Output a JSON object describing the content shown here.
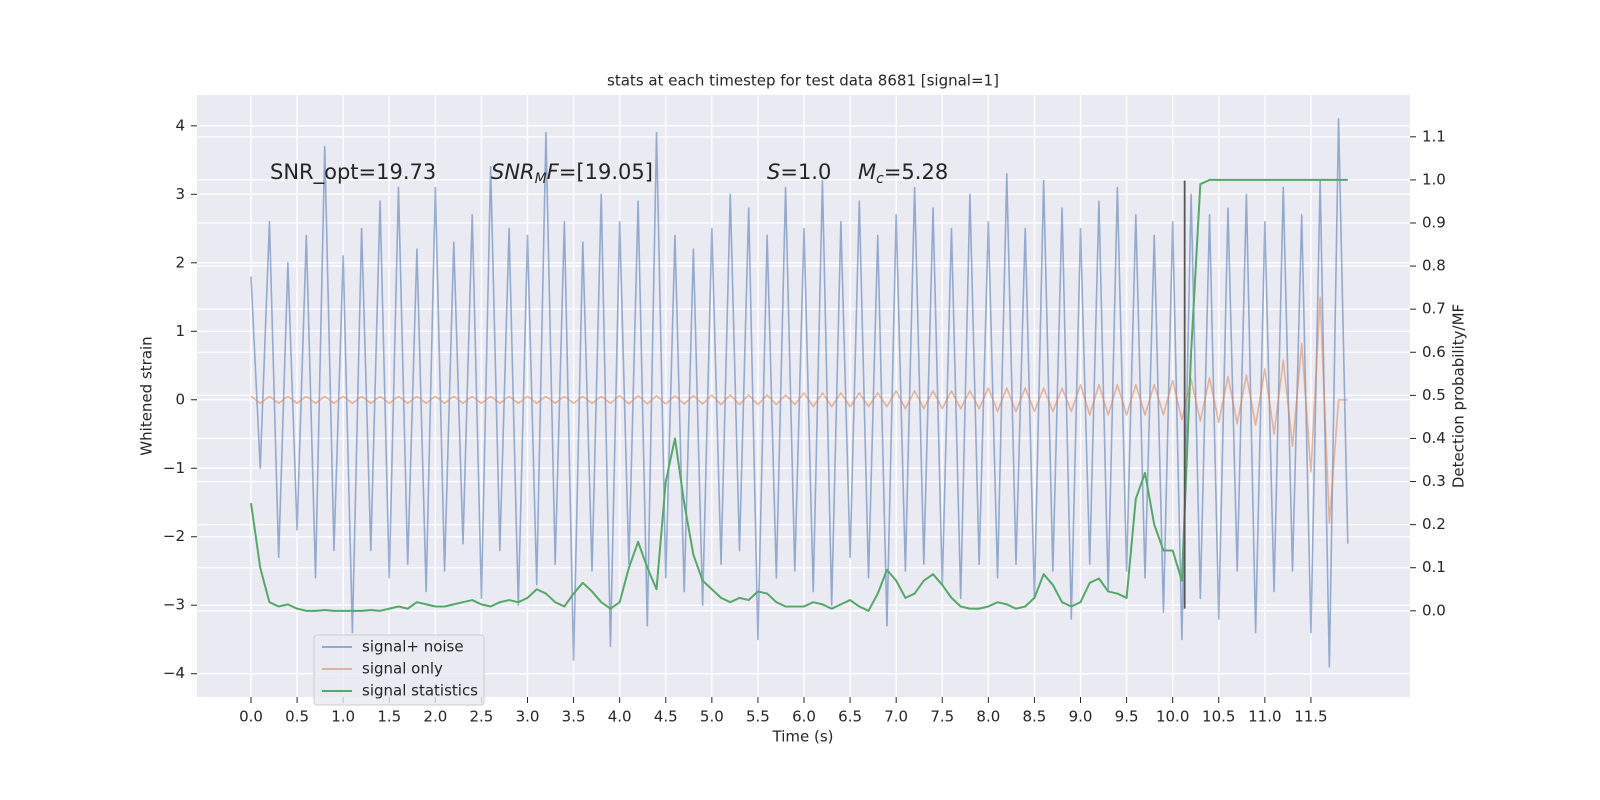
{
  "chart_data": {
    "type": "line",
    "title": "stats at each timestep for test data 8681 [signal=1]",
    "xlabel": "Time (s)",
    "ylabel": "Whitened strain",
    "y2label": "Detection probability/MF",
    "x": [
      0,
      0.1,
      0.2,
      0.3,
      0.4,
      0.5,
      0.6,
      0.7,
      0.8,
      0.9,
      1,
      1.1,
      1.2,
      1.3,
      1.4,
      1.5,
      1.6,
      1.7,
      1.8,
      1.9,
      2,
      2.1,
      2.2,
      2.3,
      2.4,
      2.5,
      2.6,
      2.7,
      2.8,
      2.9,
      3,
      3.1,
      3.2,
      3.3,
      3.4,
      3.5,
      3.6,
      3.7,
      3.8,
      3.9,
      4,
      4.1,
      4.2,
      4.3,
      4.4,
      4.5,
      4.6,
      4.7,
      4.8,
      4.9,
      5,
      5.1,
      5.2,
      5.3,
      5.4,
      5.5,
      5.6,
      5.7,
      5.8,
      5.9,
      6,
      6.1,
      6.2,
      6.3,
      6.4,
      6.5,
      6.6,
      6.7,
      6.8,
      6.9,
      7,
      7.1,
      7.2,
      7.3,
      7.4,
      7.5,
      7.6,
      7.7,
      7.8,
      7.9,
      8,
      8.1,
      8.2,
      8.3,
      8.4,
      8.5,
      8.6,
      8.7,
      8.8,
      8.9,
      9,
      9.1,
      9.2,
      9.3,
      9.4,
      9.5,
      9.6,
      9.7,
      9.8,
      9.9,
      10,
      10.1,
      10.2,
      10.3,
      10.4,
      10.5,
      10.6,
      10.7,
      10.8,
      10.9,
      11,
      11.1,
      11.2,
      11.3,
      11.4,
      11.5,
      11.6,
      11.7,
      11.8,
      11.9
    ],
    "series": [
      {
        "name": "signal+ noise",
        "color": "#4c72b0",
        "opacity": 0.55,
        "values": [
          1.8,
          -1.0,
          2.6,
          -2.3,
          2.0,
          -1.9,
          2.4,
          -2.6,
          3.7,
          -2.2,
          2.1,
          -3.4,
          2.5,
          -2.2,
          2.9,
          -2.6,
          3.1,
          -2.4,
          2.2,
          -2.8,
          3.1,
          -2.5,
          2.3,
          -2.1,
          2.7,
          -2.9,
          3.4,
          -2.2,
          2.5,
          -3.0,
          2.4,
          -2.7,
          3.9,
          -2.4,
          2.6,
          -3.8,
          2.3,
          -2.5,
          3.0,
          -3.6,
          2.6,
          -2.4,
          2.9,
          -3.3,
          3.9,
          -2.6,
          2.4,
          -2.8,
          2.2,
          -3.0,
          2.5,
          -2.4,
          3.0,
          -2.2,
          2.8,
          -3.5,
          2.4,
          -2.6,
          3.1,
          -2.5,
          2.5,
          -2.8,
          3.2,
          -3.0,
          2.6,
          -2.3,
          2.9,
          -2.6,
          2.4,
          -3.3,
          2.7,
          -2.5,
          3.1,
          -2.4,
          2.8,
          -2.7,
          2.5,
          -2.9,
          3.0,
          -2.4,
          2.6,
          -2.6,
          3.3,
          -2.4,
          2.5,
          -2.9,
          3.2,
          -2.5,
          2.8,
          -3.2,
          2.5,
          -2.4,
          2.9,
          -2.8,
          3.1,
          -2.5,
          2.7,
          -2.6,
          2.4,
          -3.1,
          2.6,
          -3.5,
          3.0,
          -2.9,
          2.7,
          -3.2,
          2.8,
          -2.5,
          3.0,
          -3.4,
          2.6,
          -2.8,
          3.1,
          -2.5,
          2.7,
          -3.4,
          3.2,
          -3.9,
          4.1,
          -2.1
        ]
      },
      {
        "name": "signal only",
        "color": "#dd8452",
        "opacity": 0.55,
        "values": [
          0.05,
          -0.05,
          0.05,
          -0.05,
          0.05,
          -0.05,
          0.05,
          -0.05,
          0.05,
          -0.05,
          0.05,
          -0.05,
          0.05,
          -0.05,
          0.05,
          -0.05,
          0.05,
          -0.05,
          0.05,
          -0.05,
          0.05,
          -0.05,
          0.05,
          -0.05,
          0.05,
          -0.05,
          0.05,
          -0.05,
          0.05,
          -0.05,
          0.05,
          -0.05,
          0.05,
          -0.05,
          0.05,
          -0.05,
          0.05,
          -0.05,
          0.05,
          -0.05,
          0.06,
          -0.06,
          0.06,
          -0.06,
          0.06,
          -0.06,
          0.06,
          -0.06,
          0.06,
          -0.06,
          0.07,
          -0.07,
          0.07,
          -0.07,
          0.07,
          -0.07,
          0.07,
          -0.07,
          0.07,
          -0.07,
          0.1,
          -0.1,
          0.1,
          -0.1,
          0.1,
          -0.1,
          0.1,
          -0.1,
          0.1,
          -0.1,
          0.13,
          -0.13,
          0.13,
          -0.13,
          0.13,
          -0.13,
          0.13,
          -0.13,
          0.13,
          -0.13,
          0.17,
          -0.17,
          0.17,
          -0.17,
          0.17,
          -0.17,
          0.17,
          -0.17,
          0.17,
          -0.17,
          0.22,
          -0.22,
          0.22,
          -0.22,
          0.22,
          -0.22,
          0.22,
          -0.22,
          0.22,
          -0.22,
          0.28,
          -0.29,
          0.3,
          -0.31,
          0.32,
          -0.33,
          0.34,
          -0.35,
          0.36,
          -0.37,
          0.45,
          -0.5,
          0.58,
          -0.68,
          0.82,
          -1.05,
          1.5,
          -1.8,
          0,
          0
        ]
      },
      {
        "name": "signal statistics",
        "color": "#55a868",
        "opacity": 1,
        "axis": "y2",
        "values": [
          0.25,
          0.1,
          0.02,
          0.01,
          0.015,
          0.005,
          0.0,
          0.0,
          0.002,
          0.0,
          0.0,
          0.0,
          0.0,
          0.002,
          0.0,
          0.005,
          0.01,
          0.005,
          0.02,
          0.015,
          0.01,
          0.01,
          0.015,
          0.02,
          0.025,
          0.015,
          0.01,
          0.02,
          0.025,
          0.02,
          0.03,
          0.05,
          0.04,
          0.02,
          0.01,
          0.04,
          0.065,
          0.045,
          0.02,
          0.005,
          0.02,
          0.1,
          0.16,
          0.1,
          0.05,
          0.3,
          0.4,
          0.25,
          0.13,
          0.07,
          0.05,
          0.03,
          0.02,
          0.03,
          0.025,
          0.045,
          0.04,
          0.02,
          0.01,
          0.01,
          0.01,
          0.02,
          0.015,
          0.005,
          0.015,
          0.025,
          0.01,
          0.0,
          0.04,
          0.095,
          0.07,
          0.03,
          0.04,
          0.07,
          0.085,
          0.06,
          0.03,
          0.01,
          0.005,
          0.005,
          0.01,
          0.02,
          0.015,
          0.005,
          0.01,
          0.03,
          0.085,
          0.06,
          0.02,
          0.01,
          0.02,
          0.065,
          0.075,
          0.045,
          0.04,
          0.03,
          0.26,
          0.32,
          0.2,
          0.14,
          0.14,
          0.07,
          0.6,
          0.99,
          1.0,
          1.0,
          1.0,
          1.0,
          1.0,
          1.0,
          1.0,
          1.0,
          1.0,
          1.0,
          1.0,
          1.0,
          1.0,
          1.0,
          1.0,
          1.0
        ]
      }
    ],
    "vline": {
      "x": 10.13,
      "ymin": -3.05,
      "ymax": 3.2,
      "color": "#555555"
    },
    "annotations": [
      {
        "rest": "SNR_opt=19.73"
      },
      {
        "italic": "SNR",
        "sub": "M",
        "italic_after": "F",
        "rest": "=[19.05]"
      },
      {
        "italic": "S",
        "rest": "=1.0"
      },
      {
        "italic": "M",
        "sub": "c",
        "rest": "=5.28"
      }
    ],
    "xlim": [
      -0.586,
      12.575
    ],
    "ylim": [
      -4.34,
      4.45
    ],
    "y2lim": [
      -0.2,
      1.197
    ],
    "xticks": [
      {
        "value": 0,
        "label": "0.0"
      },
      {
        "value": 0.5,
        "label": "0.5"
      },
      {
        "value": 1,
        "label": "1.0"
      },
      {
        "value": 1.5,
        "label": "1.5"
      },
      {
        "value": 2,
        "label": "2.0"
      },
      {
        "value": 2.5,
        "label": "2.5"
      },
      {
        "value": 3,
        "label": "3.0"
      },
      {
        "value": 3.5,
        "label": "3.5"
      },
      {
        "value": 4,
        "label": "4.0"
      },
      {
        "value": 4.5,
        "label": "4.5"
      },
      {
        "value": 5,
        "label": "5.0"
      },
      {
        "value": 5.5,
        "label": "5.5"
      },
      {
        "value": 6,
        "label": "6.0"
      },
      {
        "value": 6.5,
        "label": "6.5"
      },
      {
        "value": 7,
        "label": "7.0"
      },
      {
        "value": 7.5,
        "label": "7.5"
      },
      {
        "value": 8,
        "label": "8.0"
      },
      {
        "value": 8.5,
        "label": "8.5"
      },
      {
        "value": 9,
        "label": "9.0"
      },
      {
        "value": 9.5,
        "label": "9.5"
      },
      {
        "value": 10,
        "label": "10.0"
      },
      {
        "value": 10.5,
        "label": "10.5"
      },
      {
        "value": 11,
        "label": "11.0"
      },
      {
        "value": 11.5,
        "label": "11.5"
      }
    ],
    "yticks": [
      {
        "value": -4,
        "label": "−4"
      },
      {
        "value": -3,
        "label": "−3"
      },
      {
        "value": -2,
        "label": "−2"
      },
      {
        "value": -1,
        "label": "−1"
      },
      0,
      1,
      2,
      3,
      4
    ],
    "y2ticks": [
      {
        "value": 0,
        "label": "0.0"
      },
      {
        "value": 0.1,
        "label": "0.1"
      },
      {
        "value": 0.2,
        "label": "0.2"
      },
      {
        "value": 0.3,
        "label": "0.3"
      },
      {
        "value": 0.4,
        "label": "0.4"
      },
      {
        "value": 0.5,
        "label": "0.5"
      },
      {
        "value": 0.6,
        "label": "0.6"
      },
      {
        "value": 0.7,
        "label": "0.7"
      },
      {
        "value": 0.8,
        "label": "0.8"
      },
      {
        "value": 0.9,
        "label": "0.9"
      },
      {
        "value": 1,
        "label": "1.0"
      },
      {
        "value": 1.1,
        "label": "1.1"
      }
    ],
    "grid": true,
    "legend": "lower left"
  }
}
